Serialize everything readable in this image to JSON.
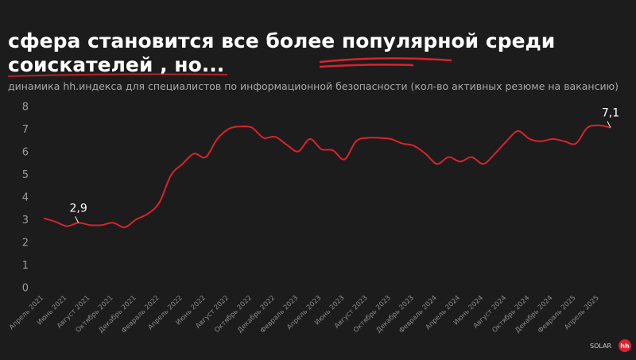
{
  "chart_data": {
    "type": "line",
    "title": [
      "сфера становится все более популярной среди",
      "соискателей , но..."
    ],
    "subtitle": "динамика hh.индекса для специалистов по информационной безопасности (кол-во активных резюме на вакансию)",
    "logos": [
      "SOLAR",
      "hh"
    ],
    "categories": [
      "Апрель 2021",
      null,
      "Июнь 2021",
      null,
      "Август 2021",
      null,
      "Октябрь 2021",
      null,
      "Декабрь 2021",
      null,
      "Февраль 2022",
      null,
      "Апрель 2022",
      null,
      "Июнь 2022",
      null,
      "Август 2022",
      null,
      "Октябрь 2022",
      null,
      "Декабрь 2022",
      null,
      "Февраль 2023",
      null,
      "Апрель 2023",
      null,
      "Июнь 2023",
      null,
      "Август 2023",
      null,
      "Октябрь 2023",
      null,
      "Декабрь 2023",
      null,
      "Февраль 2024",
      null,
      "Апрель 2024",
      null,
      "Июнь 2024",
      null,
      "Август 2024",
      null,
      "Октябрь 2024",
      null,
      "Декабрь 2024",
      null,
      "Февраль 2025",
      null,
      "Апрель 2025",
      null
    ],
    "series": [
      {
        "name": "hh.индекс",
        "color": "#d9232d",
        "values": [
          3.1,
          2.95,
          2.75,
          2.9,
          2.8,
          2.8,
          2.9,
          2.7,
          3.05,
          3.3,
          3.8,
          5.0,
          5.5,
          5.95,
          5.8,
          6.6,
          7.05,
          7.15,
          7.1,
          6.65,
          6.7,
          6.35,
          6.05,
          6.6,
          6.15,
          6.1,
          5.7,
          6.5,
          6.65,
          6.65,
          6.6,
          6.4,
          6.3,
          5.95,
          5.5,
          5.8,
          5.6,
          5.8,
          5.5,
          5.95,
          6.5,
          6.95,
          6.6,
          6.5,
          6.6,
          6.5,
          6.4,
          7.1,
          7.2,
          7.1
        ],
        "value_labels": [
          null,
          null,
          null,
          "2,9",
          null,
          null,
          null,
          null,
          null,
          null,
          null,
          null,
          null,
          null,
          null,
          null,
          null,
          null,
          null,
          null,
          null,
          null,
          null,
          null,
          null,
          null,
          null,
          null,
          null,
          null,
          null,
          null,
          null,
          null,
          null,
          null,
          null,
          null,
          null,
          null,
          null,
          null,
          null,
          null,
          null,
          null,
          null,
          null,
          null,
          "7,1"
        ]
      }
    ],
    "ylim": [
      0,
      8
    ],
    "yticks": [
      0,
      1,
      2,
      3,
      4,
      5,
      6,
      7,
      8
    ]
  }
}
